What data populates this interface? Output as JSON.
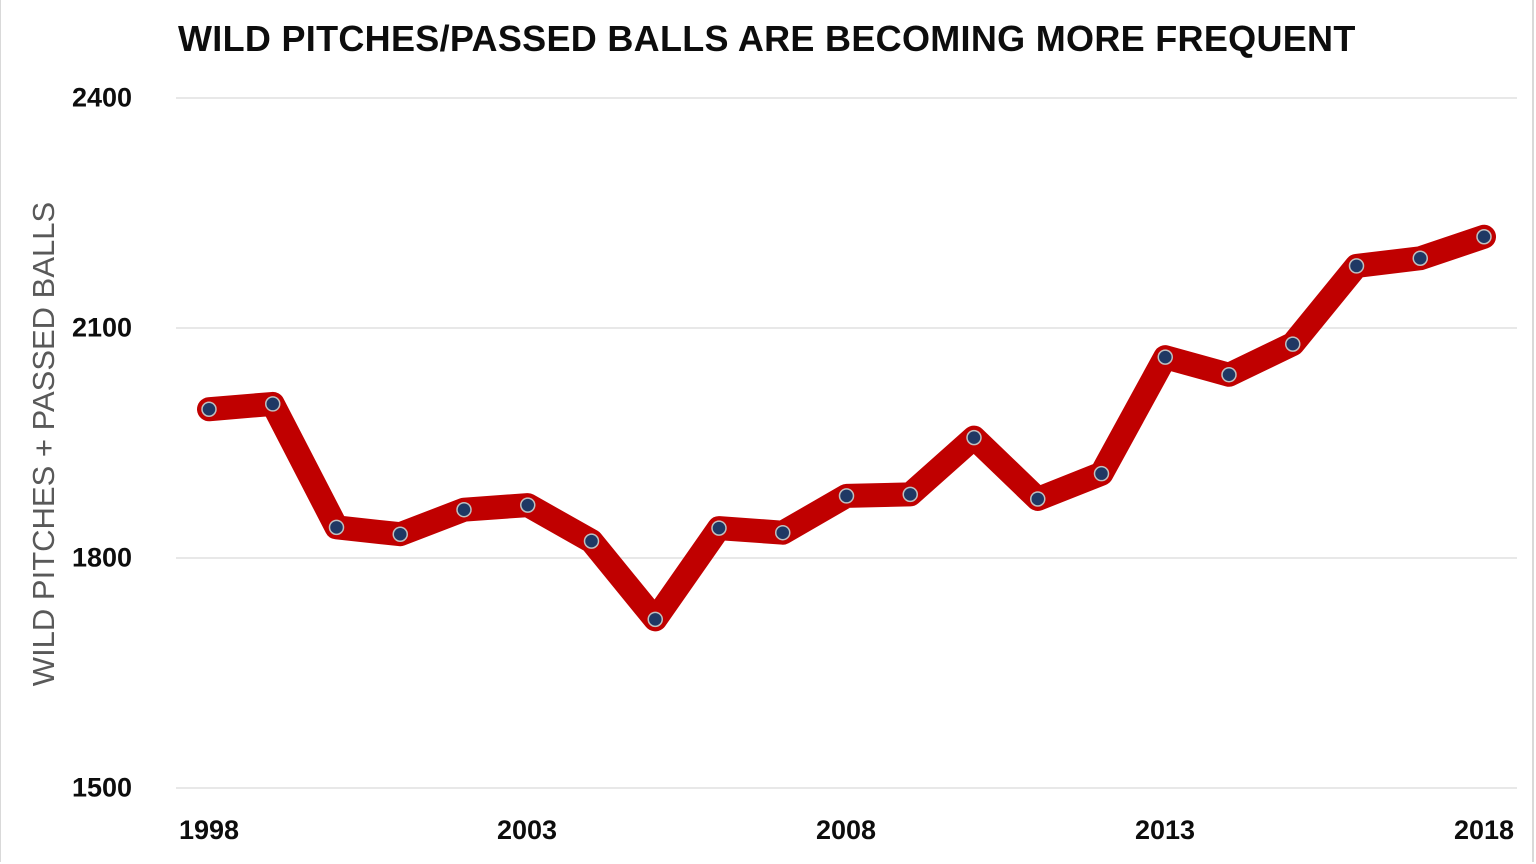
{
  "chart_data": {
    "type": "line",
    "title": "WILD PITCHES/PASSED BALLS ARE BECOMING MORE FREQUENT",
    "xlabel": "",
    "ylabel": "WILD PITCHES + PASSED BALLS",
    "x": [
      1998,
      1999,
      2000,
      2001,
      2002,
      2003,
      2004,
      2005,
      2006,
      2007,
      2008,
      2009,
      2010,
      2011,
      2012,
      2013,
      2014,
      2015,
      2016,
      2017,
      2018
    ],
    "series": [
      {
        "name": "Wild Pitches + Passed Balls",
        "values": [
          1994,
          2001,
          1840,
          1831,
          1863,
          1869,
          1822,
          1720,
          1839,
          1833,
          1881,
          1883,
          1957,
          1877,
          1910,
          2062,
          2039,
          2079,
          2181,
          2191,
          2219
        ]
      }
    ],
    "ylim": [
      1500,
      2400
    ],
    "yticks": [
      2400,
      2100,
      1800,
      1500
    ],
    "xticks": [
      1998,
      2003,
      2008,
      2013,
      2018
    ],
    "grid": "horizontal",
    "legend": "none",
    "colors": {
      "line": "#c00000",
      "marker_fill": "#1f3864",
      "marker_edge": "#bfbfbf",
      "grid": "#e0e0e0"
    }
  },
  "labels": {
    "title": "WILD PITCHES/PASSED BALLS ARE BECOMING MORE FREQUENT",
    "ylabel": "WILD PITCHES + PASSED BALLS",
    "yticks": [
      "2400",
      "2100",
      "1800",
      "1500"
    ],
    "xticks": [
      "1998",
      "2003",
      "2008",
      "2013",
      "2018"
    ]
  }
}
